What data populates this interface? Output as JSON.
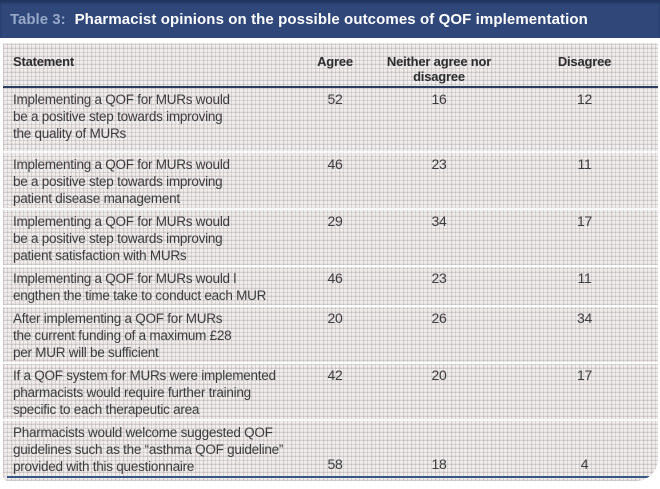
{
  "title": {
    "label": "Table 3:",
    "text": "Pharmacist opinions on the possible outcomes of QOF implementation"
  },
  "columns": {
    "statement": "Statement",
    "agree": "Agree",
    "neither": "Neither agree nor\ndisagree",
    "disagree": "Disagree"
  },
  "rows": [
    {
      "statement": "Implementing a QOF for MURs would\nbe a positive step towards improving\nthe quality of MURs",
      "agree": "52",
      "neither": "16",
      "disagree": "12"
    },
    {
      "statement": "Implementing a QOF for MURs would\nbe a positive step towards improving\npatient disease management",
      "agree": "46",
      "neither": "23",
      "disagree": "11"
    },
    {
      "statement": "Implementing a QOF for MURs would\nbe a positive step towards improving\npatient satisfaction with MURs",
      "agree": "29",
      "neither": "34",
      "disagree": "17"
    },
    {
      "statement": "Implementing a QOF for MURs would l\nengthen the time take to conduct each MUR",
      "agree": "46",
      "neither": "23",
      "disagree": "11"
    },
    {
      "statement": "After implementing a QOF for MURs\nthe current funding of a maximum £28\nper MUR will be sufficient",
      "agree": "20",
      "neither": "26",
      "disagree": "34"
    },
    {
      "statement": "If a QOF system for MURs were implemented\npharmacists would require further training\nspecific to each therapeutic area",
      "agree": "42",
      "neither": "20",
      "disagree": "17"
    },
    {
      "statement": "Pharmacists would welcome suggested QOF\nguidelines such as the “asthma QOF guideline”\nprovided with this questionnaire",
      "agree": "58",
      "neither": "18",
      "disagree": "4"
    }
  ],
  "colors": {
    "title_bar": "#2f4779",
    "title_label": "#97a8c8",
    "header_rule": "#2c3c5e",
    "bottom_rule": "#3a5684",
    "body_text": "#3c3c3c"
  }
}
